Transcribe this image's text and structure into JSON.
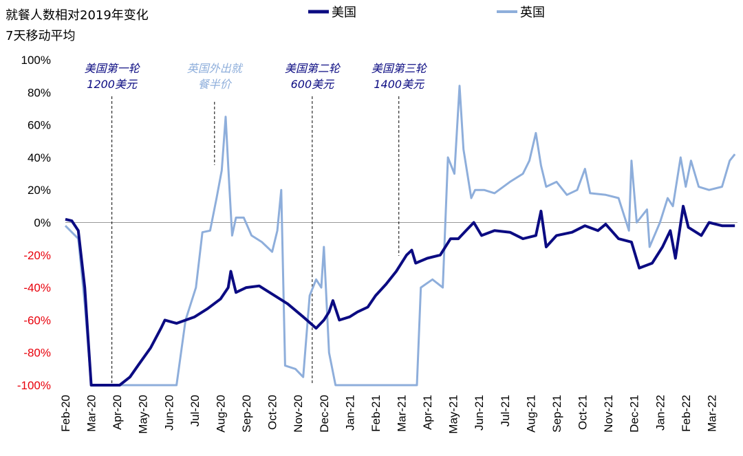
{
  "chart_data": {
    "type": "line",
    "title": "就餐人数相对2019年变化",
    "subtitle": "7天移动平均",
    "xlim": [
      0,
      26
    ],
    "xticks": [
      {
        "value": 0,
        "label": "Feb-20"
      },
      {
        "value": 1,
        "label": "Mar-20"
      },
      {
        "value": 2,
        "label": "Apr-20"
      },
      {
        "value": 3,
        "label": "May-20"
      },
      {
        "value": 4,
        "label": "Jun-20"
      },
      {
        "value": 5,
        "label": "Jul-20"
      },
      {
        "value": 6,
        "label": "Aug-20"
      },
      {
        "value": 7,
        "label": "Sep-20"
      },
      {
        "value": 8,
        "label": "Oct-20"
      },
      {
        "value": 9,
        "label": "Nov-20"
      },
      {
        "value": 10,
        "label": "Dec-20"
      },
      {
        "value": 11,
        "label": "Jan-21"
      },
      {
        "value": 12,
        "label": "Feb-21"
      },
      {
        "value": 13,
        "label": "Mar-21"
      },
      {
        "value": 14,
        "label": "Apr-21"
      },
      {
        "value": 15,
        "label": "May-21"
      },
      {
        "value": 16,
        "label": "Jun-21"
      },
      {
        "value": 17,
        "label": "Jul-21"
      },
      {
        "value": 18,
        "label": "Aug-21"
      },
      {
        "value": 19,
        "label": "Sep-21"
      },
      {
        "value": 20,
        "label": "Oct-21"
      },
      {
        "value": 21,
        "label": "Nov-21"
      },
      {
        "value": 22,
        "label": "Dec-21"
      },
      {
        "value": 23,
        "label": "Jan-22"
      },
      {
        "value": 24,
        "label": "Feb-22"
      },
      {
        "value": 25,
        "label": "Mar-22"
      }
    ],
    "ylim": [
      -100,
      100
    ],
    "yticks": [
      {
        "value": 100,
        "label": "100%"
      },
      {
        "value": 80,
        "label": "80%"
      },
      {
        "value": 60,
        "label": "60%"
      },
      {
        "value": 40,
        "label": "40%"
      },
      {
        "value": 20,
        "label": "20%"
      },
      {
        "value": 0,
        "label": "0%"
      },
      {
        "value": -20,
        "label": "-20%"
      },
      {
        "value": -40,
        "label": "-40%"
      },
      {
        "value": -60,
        "label": "-60%"
      },
      {
        "value": -80,
        "label": "-80%"
      },
      {
        "value": -100,
        "label": "-100%"
      }
    ],
    "negative_tick_color": "#e8000b",
    "legend": "top",
    "series": [
      {
        "name": "美国",
        "color": "#0b0b82",
        "width": 4,
        "x": [
          0,
          0.25,
          0.5,
          0.75,
          1.0,
          2.1,
          2.5,
          2.85,
          3.3,
          3.7,
          3.85,
          4.3,
          5,
          5.5,
          6,
          6.3,
          6.4,
          6.6,
          7,
          7.5,
          8.1,
          8.6,
          9.2,
          9.7,
          10,
          10.2,
          10.35,
          10.6,
          11,
          11.3,
          11.7,
          12,
          12.4,
          12.8,
          13.2,
          13.4,
          13.55,
          14,
          14.5,
          14.9,
          15.2,
          15.5,
          15.8,
          16.1,
          16.6,
          17.2,
          17.7,
          18.2,
          18.4,
          18.6,
          19,
          19.6,
          20.1,
          20.6,
          20.9,
          21.4,
          21.9,
          22.2,
          22.7,
          23.1,
          23.4,
          23.6,
          23.9,
          24.1,
          24.6,
          24.9,
          25.4,
          25.9
        ],
        "values": [
          2,
          1,
          -5,
          -40,
          -100,
          -100,
          -95,
          -87,
          -77,
          -65,
          -60,
          -62,
          -58,
          -53,
          -47,
          -40,
          -30,
          -43,
          -40,
          -39,
          -45,
          -50,
          -58,
          -65,
          -60,
          -55,
          -48,
          -60,
          -58,
          -55,
          -52,
          -45,
          -38,
          -30,
          -20,
          -17,
          -25,
          -22,
          -20,
          -10,
          -10,
          -5,
          0,
          -8,
          -5,
          -6,
          -10,
          -8,
          7,
          -15,
          -8,
          -6,
          -2,
          -5,
          -1,
          -10,
          -12,
          -28,
          -25,
          -15,
          -5,
          -22,
          10,
          -3,
          -8,
          0,
          -2,
          -2
        ]
      },
      {
        "name": "英国",
        "color": "#8eaedb",
        "width": 3,
        "x": [
          0,
          0.5,
          0.75,
          1.0,
          4.3,
          4.65,
          5.05,
          5.3,
          5.6,
          5.85,
          6.05,
          6.2,
          6.3,
          6.45,
          6.6,
          6.9,
          7.2,
          7.6,
          8,
          8.2,
          8.35,
          8.5,
          8.9,
          9.2,
          9.45,
          9.7,
          9.9,
          10,
          10.2,
          10.45,
          13.6,
          13.75,
          14.2,
          14.6,
          14.8,
          15.05,
          15.25,
          15.4,
          15.7,
          15.85,
          16.2,
          16.6,
          17.2,
          17.7,
          17.95,
          18.2,
          18.4,
          18.6,
          19,
          19.4,
          19.8,
          20.1,
          20.3,
          20.9,
          21.4,
          21.8,
          21.9,
          22.1,
          22.5,
          22.6,
          23,
          23.3,
          23.5,
          23.8,
          24,
          24.2,
          24.5,
          24.9,
          25.4,
          25.7,
          25.9
        ],
        "values": [
          -2,
          -10,
          -50,
          -100,
          -100,
          -60,
          -40,
          -6,
          -5,
          15,
          32,
          65,
          35,
          -8,
          3,
          3,
          -8,
          -12,
          -18,
          -5,
          20,
          -88,
          -90,
          -95,
          -45,
          -35,
          -40,
          -15,
          -80,
          -100,
          -100,
          -40,
          -35,
          -40,
          40,
          30,
          84,
          45,
          15,
          20,
          20,
          18,
          25,
          30,
          38,
          55,
          35,
          22,
          25,
          17,
          20,
          33,
          18,
          17,
          15,
          -5,
          38,
          0,
          8,
          -15,
          0,
          15,
          10,
          40,
          22,
          38,
          22,
          20,
          22,
          38,
          42
        ]
      }
    ],
    "annotations": [
      {
        "x": 1.8,
        "lines": [
          "美国第一轮",
          "1200美元"
        ],
        "color": "#0b0b82"
      },
      {
        "x": 5.77,
        "lines": [
          "英国外出就",
          "餐半价"
        ],
        "color": "#8eaedb"
      },
      {
        "x": 9.55,
        "lines": [
          "美国第二轮",
          "600美元"
        ],
        "color": "#0b0b82"
      },
      {
        "x": 12.9,
        "lines": [
          "美国第三轮",
          "1400美元"
        ],
        "color": "#0b0b82"
      }
    ]
  }
}
